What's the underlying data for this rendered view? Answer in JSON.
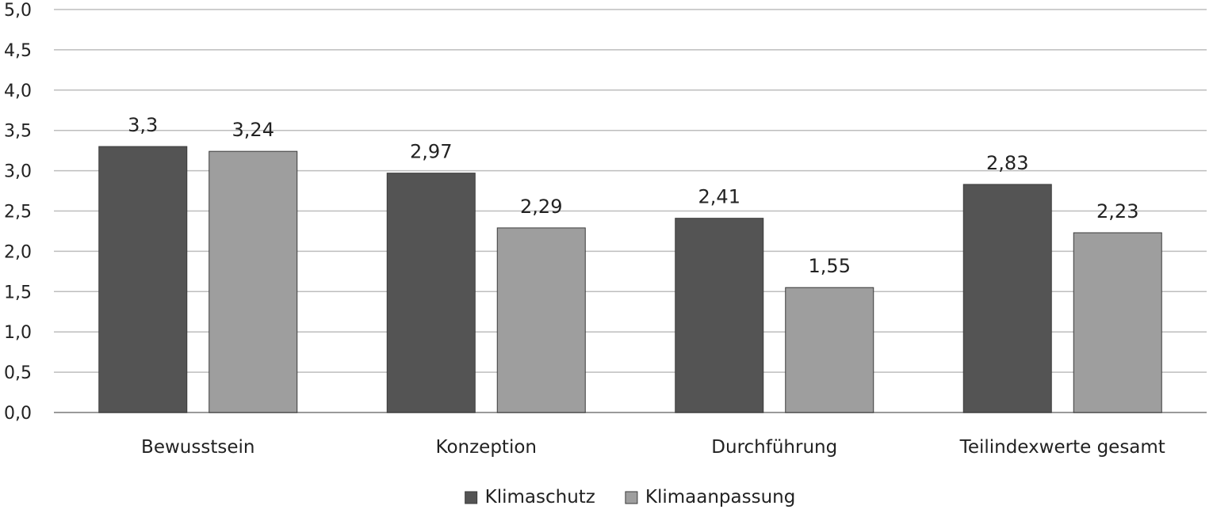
{
  "chart_data": {
    "type": "bar",
    "categories": [
      "Bewusstsein",
      "Konzeption",
      "Durchführung",
      "Teilindexwerte gesamt"
    ],
    "series": [
      {
        "name": "Klimaschutz",
        "values": [
          3.3,
          2.97,
          2.41,
          2.83
        ],
        "labels": [
          "3,3",
          "2,97",
          "2,41",
          "2,83"
        ],
        "color": "#545454"
      },
      {
        "name": "Klimaanpassung",
        "values": [
          3.24,
          2.29,
          1.55,
          2.23
        ],
        "labels": [
          "3,24",
          "2,29",
          "1,55",
          "2,23"
        ],
        "color": "#9e9e9e"
      }
    ],
    "ylim": [
      0,
      5
    ],
    "ytick_values": [
      0,
      0.5,
      1,
      1.5,
      2,
      2.5,
      3,
      3.5,
      4,
      4.5,
      5
    ],
    "ytick_labels": [
      "0,0",
      "0,5",
      "1,0",
      "1,5",
      "2,0",
      "2,5",
      "3,0",
      "3,5",
      "4,0",
      "4,5",
      "5,0"
    ],
    "grid": true,
    "legend_position": "bottom-center"
  }
}
